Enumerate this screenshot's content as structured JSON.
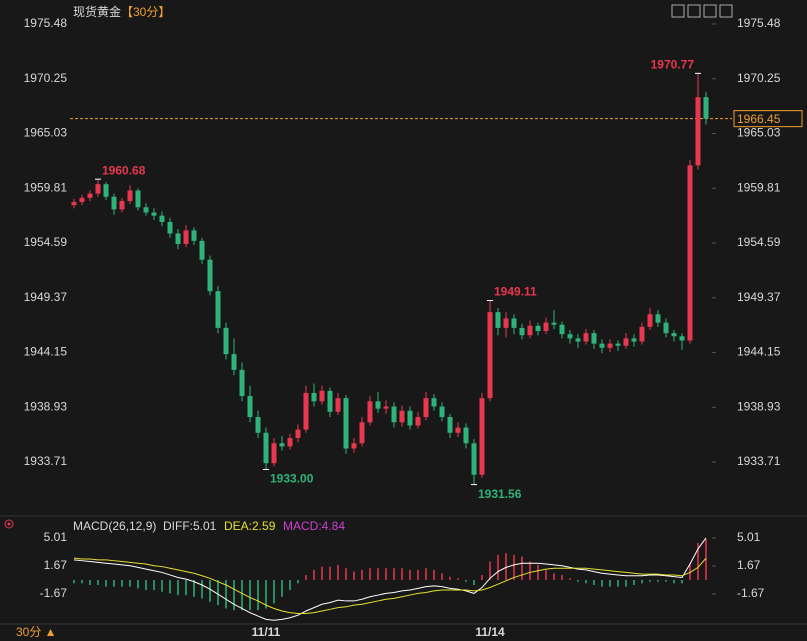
{
  "chart_data": {
    "type": "candlestick",
    "title": "现货黄金",
    "period": "【30分】",
    "bottom_label": "30分 ▲",
    "categories": [
      null,
      null,
      null,
      null,
      null,
      null,
      null,
      null,
      null,
      null,
      null,
      null,
      null,
      null,
      null,
      null,
      null,
      null,
      null,
      null,
      null,
      null,
      null,
      null,
      "11/11",
      null,
      null,
      null,
      null,
      null,
      null,
      null,
      null,
      null,
      null,
      null,
      null,
      null,
      null,
      null,
      null,
      null,
      null,
      null,
      null,
      null,
      null,
      null,
      null,
      null,
      null,
      null,
      "11/14",
      null,
      null,
      null,
      null,
      null,
      null,
      null,
      null,
      null,
      null,
      null,
      null,
      null,
      null,
      null,
      null,
      null,
      null,
      null,
      null,
      null,
      null,
      null,
      null,
      null,
      null,
      null
    ],
    "up_color": "#e8384f",
    "down_color": "#2fb37a",
    "candles": [
      [
        1958.2,
        1958.8,
        1957.9,
        1958.5
      ],
      [
        1958.5,
        1959.2,
        1958.2,
        1958.9
      ],
      [
        1958.9,
        1959.6,
        1958.6,
        1959.3
      ],
      [
        1959.3,
        1960.68,
        1959.0,
        1960.2
      ],
      [
        1960.2,
        1960.4,
        1958.7,
        1959.0
      ],
      [
        1959.0,
        1959.3,
        1957.3,
        1957.8
      ],
      [
        1957.8,
        1958.9,
        1957.5,
        1958.6
      ],
      [
        1958.6,
        1960.1,
        1958.3,
        1959.6
      ],
      [
        1959.6,
        1959.8,
        1957.7,
        1958.0
      ],
      [
        1958.0,
        1958.4,
        1957.2,
        1957.5
      ],
      [
        1957.5,
        1957.9,
        1956.8,
        1957.2
      ],
      [
        1957.2,
        1957.6,
        1956.2,
        1956.6
      ],
      [
        1956.6,
        1957.0,
        1955.1,
        1955.5
      ],
      [
        1955.5,
        1955.9,
        1954.0,
        1954.5
      ],
      [
        1954.5,
        1956.3,
        1954.2,
        1955.8
      ],
      [
        1955.8,
        1956.1,
        1954.4,
        1954.8
      ],
      [
        1954.8,
        1955.1,
        1952.6,
        1953.0
      ],
      [
        1953.0,
        1953.4,
        1949.6,
        1950.0
      ],
      [
        1950.0,
        1950.5,
        1946.0,
        1946.5
      ],
      [
        1946.5,
        1947.0,
        1943.5,
        1944.0
      ],
      [
        1944.0,
        1945.5,
        1942.0,
        1942.5
      ],
      [
        1942.5,
        1943.2,
        1939.5,
        1940.0
      ],
      [
        1940.0,
        1941.0,
        1937.5,
        1938.0
      ],
      [
        1938.0,
        1938.6,
        1936.0,
        1936.5
      ],
      [
        1936.5,
        1937.0,
        1933.0,
        1933.6
      ],
      [
        1933.6,
        1936.0,
        1933.3,
        1935.5
      ],
      [
        1935.5,
        1936.2,
        1934.8,
        1935.2
      ],
      [
        1935.2,
        1936.4,
        1934.9,
        1936.0
      ],
      [
        1936.0,
        1937.3,
        1935.6,
        1936.8
      ],
      [
        1936.8,
        1941.0,
        1936.5,
        1940.3
      ],
      [
        1940.3,
        1941.2,
        1939.0,
        1939.5
      ],
      [
        1939.5,
        1941.0,
        1939.2,
        1940.5
      ],
      [
        1940.5,
        1940.8,
        1938.0,
        1938.5
      ],
      [
        1938.5,
        1940.3,
        1938.2,
        1939.8
      ],
      [
        1939.8,
        1940.1,
        1934.5,
        1935.0
      ],
      [
        1935.0,
        1936.0,
        1934.6,
        1935.5
      ],
      [
        1935.5,
        1938.0,
        1935.2,
        1937.5
      ],
      [
        1937.5,
        1940.0,
        1937.2,
        1939.5
      ],
      [
        1939.5,
        1940.4,
        1938.4,
        1938.8
      ],
      [
        1938.8,
        1939.6,
        1938.3,
        1939.0
      ],
      [
        1939.0,
        1939.4,
        1937.0,
        1937.5
      ],
      [
        1937.5,
        1939.1,
        1937.1,
        1938.6
      ],
      [
        1938.6,
        1939.0,
        1936.8,
        1937.2
      ],
      [
        1937.2,
        1938.5,
        1936.9,
        1938.0
      ],
      [
        1938.0,
        1940.4,
        1937.7,
        1939.8
      ],
      [
        1939.8,
        1940.2,
        1938.6,
        1939.0
      ],
      [
        1939.0,
        1939.4,
        1937.6,
        1938.0
      ],
      [
        1938.0,
        1938.3,
        1936.0,
        1936.5
      ],
      [
        1936.5,
        1937.5,
        1936.1,
        1937.0
      ],
      [
        1937.0,
        1937.4,
        1935.0,
        1935.5
      ],
      [
        1935.5,
        1935.9,
        1931.56,
        1932.5
      ],
      [
        1932.5,
        1940.3,
        1932.2,
        1939.8
      ],
      [
        1939.8,
        1949.11,
        1939.5,
        1948.0
      ],
      [
        1948.0,
        1948.4,
        1945.8,
        1946.5
      ],
      [
        1946.5,
        1948.0,
        1945.6,
        1947.4
      ],
      [
        1947.4,
        1947.8,
        1945.9,
        1946.5
      ],
      [
        1946.5,
        1946.9,
        1945.4,
        1945.8
      ],
      [
        1945.8,
        1947.2,
        1945.5,
        1946.7
      ],
      [
        1946.7,
        1947.0,
        1945.8,
        1946.2
      ],
      [
        1946.2,
        1947.5,
        1945.9,
        1947.0
      ],
      [
        1947.0,
        1948.2,
        1946.4,
        1946.8
      ],
      [
        1946.8,
        1947.1,
        1945.5,
        1945.9
      ],
      [
        1945.9,
        1946.3,
        1945.0,
        1945.5
      ],
      [
        1945.5,
        1945.9,
        1944.6,
        1945.2
      ],
      [
        1945.2,
        1946.4,
        1944.9,
        1946.0
      ],
      [
        1946.0,
        1946.3,
        1944.5,
        1945.0
      ],
      [
        1945.0,
        1945.4,
        1944.1,
        1944.6
      ],
      [
        1944.6,
        1945.4,
        1944.2,
        1945.0
      ],
      [
        1945.0,
        1945.3,
        1944.3,
        1944.8
      ],
      [
        1944.8,
        1946.0,
        1944.5,
        1945.5
      ],
      [
        1945.5,
        1945.9,
        1944.7,
        1945.2
      ],
      [
        1945.2,
        1947.0,
        1944.9,
        1946.6
      ],
      [
        1946.6,
        1948.4,
        1946.3,
        1947.8
      ],
      [
        1947.8,
        1948.2,
        1946.6,
        1947.0
      ],
      [
        1947.0,
        1947.4,
        1945.6,
        1946.0
      ],
      [
        1946.0,
        1946.3,
        1945.2,
        1945.7
      ],
      [
        1945.7,
        1946.0,
        1944.4,
        1945.3
      ],
      [
        1945.3,
        1962.5,
        1945.0,
        1962.0
      ],
      [
        1962.0,
        1970.77,
        1961.6,
        1968.5
      ],
      [
        1968.5,
        1969.0,
        1965.9,
        1966.45
      ]
    ],
    "ylim": [
      1928.66,
      1976.81
    ],
    "yticks": [
      1975.48,
      1970.25,
      1965.03,
      1959.81,
      1954.59,
      1949.37,
      1944.15,
      1938.93,
      1933.71
    ],
    "last_price": 1966.45,
    "last_price_color": "#f0a030",
    "high_labels": [
      {
        "value": 1960.68,
        "label": "1960.68"
      },
      {
        "value": 1949.11,
        "label": "1949.11"
      },
      {
        "value": 1970.77,
        "label": "1970.77"
      }
    ],
    "low_labels": [
      {
        "value": 1933.0,
        "label": "1933.00"
      },
      {
        "value": 1931.56,
        "label": "1931.56"
      }
    ],
    "macd": {
      "title": "MACD(26,12,9)",
      "diff_label": "DIFF:5.01",
      "dea_label": "DEA:2.59",
      "macd_label": "MACD:4.84",
      "ylim": [
        -5.37,
        5.96
      ],
      "yticks": [
        5.01,
        1.67,
        -1.67
      ],
      "diff": {
        "color": "#ffffff",
        "values": [
          2.4,
          2.3,
          2.2,
          2.1,
          2.0,
          1.9,
          1.8,
          1.7,
          1.5,
          1.3,
          1.1,
          0.9,
          0.6,
          0.3,
          0.1,
          -0.2,
          -0.6,
          -1.1,
          -1.7,
          -2.3,
          -2.9,
          -3.4,
          -3.9,
          -4.3,
          -4.7,
          -4.8,
          -4.7,
          -4.5,
          -4.2,
          -3.7,
          -3.3,
          -2.9,
          -2.7,
          -2.4,
          -2.5,
          -2.5,
          -2.3,
          -2.0,
          -1.8,
          -1.6,
          -1.5,
          -1.3,
          -1.2,
          -1.0,
          -0.8,
          -0.7,
          -0.8,
          -1.0,
          -1.1,
          -1.3,
          -1.6,
          -0.9,
          0.2,
          1.0,
          1.5,
          1.8,
          2.0,
          2.0,
          2.0,
          1.9,
          1.8,
          1.7,
          1.5,
          1.3,
          1.2,
          1.0,
          0.8,
          0.7,
          0.6,
          0.5,
          0.5,
          0.5,
          0.6,
          0.6,
          0.5,
          0.4,
          0.3,
          1.9,
          3.7,
          5.01
        ]
      },
      "dea": {
        "color": "#e8e030",
        "values": [
          2.6,
          2.5,
          2.5,
          2.4,
          2.4,
          2.3,
          2.2,
          2.1,
          2.0,
          1.9,
          1.7,
          1.6,
          1.4,
          1.2,
          1.0,
          0.8,
          0.5,
          0.2,
          -0.2,
          -0.6,
          -1.1,
          -1.6,
          -2.1,
          -2.5,
          -3.0,
          -3.4,
          -3.7,
          -3.9,
          -4.0,
          -4.0,
          -3.9,
          -3.7,
          -3.5,
          -3.3,
          -3.2,
          -3.0,
          -2.9,
          -2.7,
          -2.5,
          -2.3,
          -2.2,
          -2.0,
          -1.8,
          -1.6,
          -1.5,
          -1.3,
          -1.2,
          -1.2,
          -1.2,
          -1.2,
          -1.3,
          -1.2,
          -0.9,
          -0.5,
          -0.1,
          0.3,
          0.6,
          0.9,
          1.1,
          1.3,
          1.4,
          1.4,
          1.4,
          1.4,
          1.4,
          1.3,
          1.2,
          1.1,
          1.0,
          0.9,
          0.8,
          0.7,
          0.7,
          0.7,
          0.6,
          0.6,
          0.5,
          0.9,
          1.5,
          2.59
        ]
      },
      "hist": {
        "up_color": "#e8384f",
        "down_color": "#2fb37a",
        "values": [
          -0.4,
          -0.4,
          -0.6,
          -0.6,
          -0.8,
          -0.8,
          -0.8,
          -0.8,
          -1.0,
          -1.2,
          -1.2,
          -1.4,
          -1.6,
          -1.8,
          -1.8,
          -2.0,
          -2.2,
          -2.6,
          -3.0,
          -3.4,
          -3.6,
          -3.6,
          -3.6,
          -3.6,
          -3.4,
          -2.8,
          -2.0,
          -1.2,
          -0.4,
          0.6,
          1.2,
          1.6,
          1.6,
          1.8,
          1.4,
          1.0,
          1.2,
          1.4,
          1.4,
          1.4,
          1.4,
          1.4,
          1.2,
          1.2,
          1.4,
          1.2,
          0.8,
          0.4,
          0.2,
          -0.2,
          -0.6,
          0.6,
          2.2,
          3.0,
          3.2,
          3.0,
          2.8,
          2.2,
          1.8,
          1.2,
          0.8,
          0.6,
          0.2,
          -0.2,
          -0.4,
          -0.6,
          -0.8,
          -0.8,
          -0.8,
          -0.8,
          -0.6,
          -0.4,
          -0.2,
          -0.2,
          -0.2,
          -0.4,
          -0.4,
          2.0,
          4.4,
          4.84
        ]
      },
      "label_colors": {
        "title": "#d8d8d8",
        "diff": "#d8d8d8",
        "dea": "#e8e030",
        "macd": "#d040d0"
      }
    }
  }
}
